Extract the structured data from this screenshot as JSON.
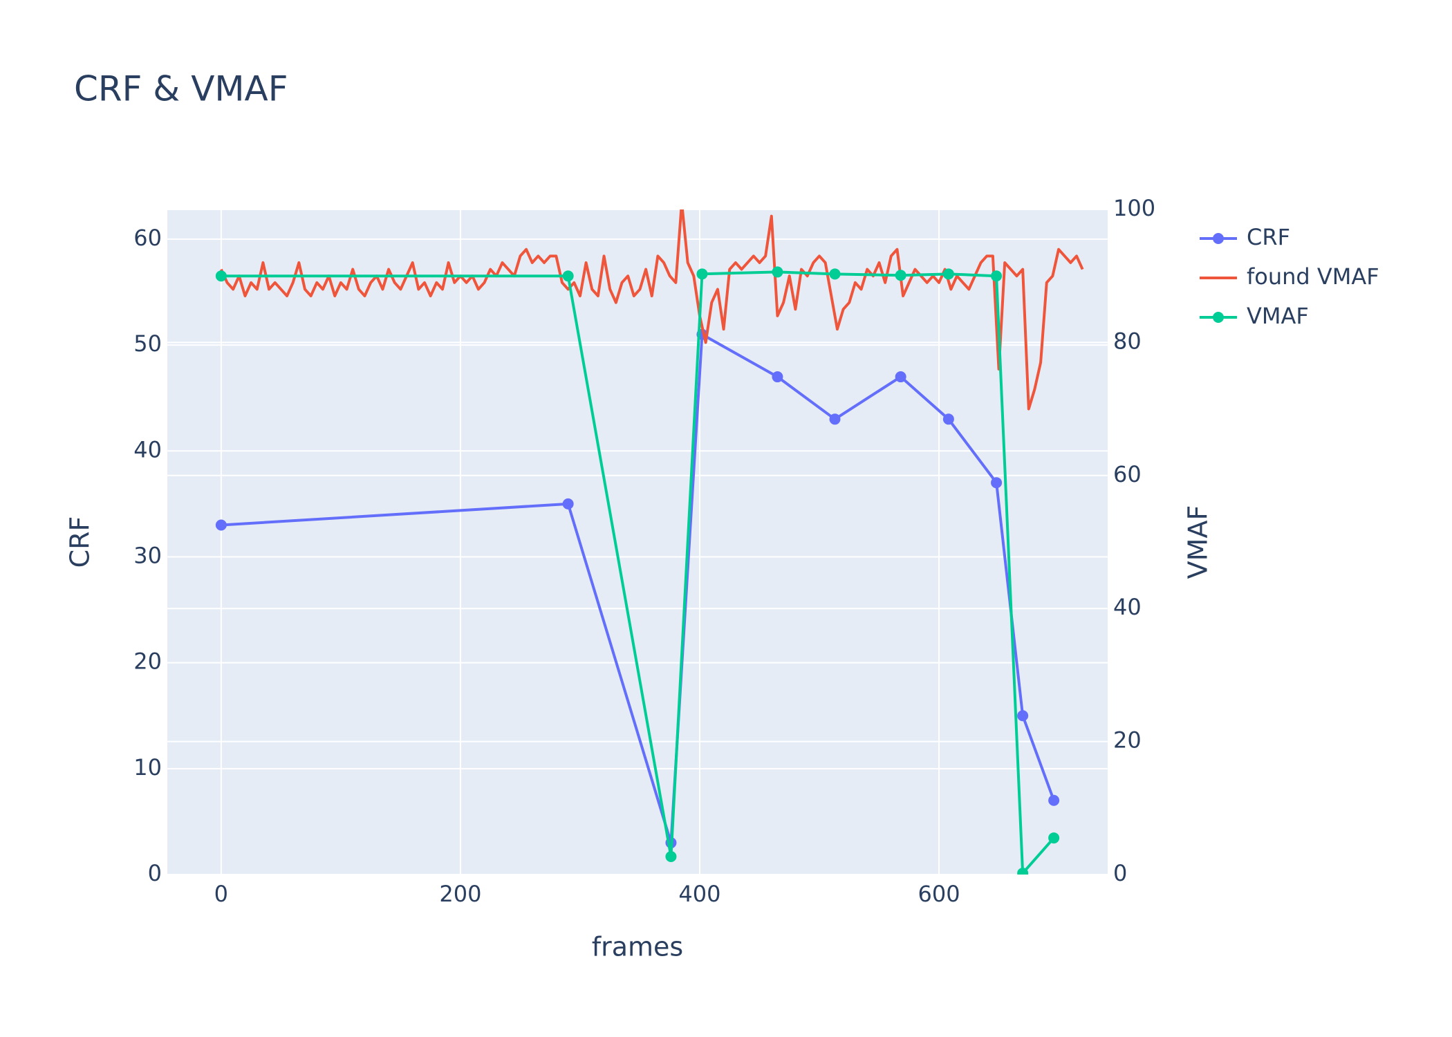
{
  "chart_data": {
    "type": "line",
    "title": "CRF & VMAF",
    "xlabel": "frames",
    "ylabel": "CRF",
    "y2label": "VMAF",
    "x": [
      0,
      290,
      376,
      402,
      465,
      513,
      568,
      608,
      648,
      670,
      696
    ],
    "series": [
      {
        "name": "CRF",
        "color": "#636efa",
        "mode": "lines+markers",
        "values": [
          33,
          35,
          3,
          51,
          47,
          43,
          47,
          43,
          37,
          15,
          7
        ]
      },
      {
        "name": "found VMAF",
        "color": "#EF553B",
        "mode": "lines",
        "axis": "y2",
        "x": [
          0,
          5,
          10,
          15,
          20,
          25,
          30,
          35,
          40,
          45,
          50,
          55,
          60,
          65,
          70,
          75,
          80,
          85,
          90,
          95,
          100,
          105,
          110,
          115,
          120,
          125,
          130,
          135,
          140,
          145,
          150,
          155,
          160,
          165,
          170,
          175,
          180,
          185,
          190,
          195,
          200,
          205,
          210,
          215,
          220,
          225,
          230,
          235,
          240,
          245,
          250,
          255,
          260,
          265,
          270,
          275,
          280,
          285,
          290,
          295,
          300,
          305,
          310,
          315,
          320,
          325,
          330,
          335,
          340,
          345,
          350,
          355,
          360,
          365,
          370,
          375,
          380,
          385,
          390,
          395,
          400,
          405,
          410,
          415,
          420,
          425,
          430,
          435,
          440,
          445,
          450,
          455,
          460,
          465,
          470,
          475,
          480,
          485,
          490,
          495,
          500,
          505,
          510,
          515,
          520,
          525,
          530,
          535,
          540,
          545,
          550,
          555,
          560,
          565,
          570,
          575,
          580,
          585,
          590,
          595,
          600,
          605,
          610,
          615,
          620,
          625,
          630,
          635,
          640,
          645,
          650,
          655,
          660,
          665,
          670,
          675,
          680,
          685,
          690,
          695,
          700,
          705,
          710,
          715,
          720
        ],
        "values": [
          91,
          89,
          88,
          90,
          87,
          89,
          88,
          92,
          88,
          89,
          88,
          87,
          89,
          92,
          88,
          87,
          89,
          88,
          90,
          87,
          89,
          88,
          91,
          88,
          87,
          89,
          90,
          88,
          91,
          89,
          88,
          90,
          92,
          88,
          89,
          87,
          89,
          88,
          92,
          89,
          90,
          89,
          90,
          88,
          89,
          91,
          90,
          92,
          91,
          90,
          93,
          94,
          92,
          93,
          92,
          93,
          93,
          89,
          88,
          89,
          87,
          92,
          88,
          87,
          93,
          88,
          86,
          89,
          90,
          87,
          88,
          91,
          87,
          93,
          92,
          90,
          89,
          101,
          92,
          90,
          84,
          80,
          86,
          88,
          82,
          91,
          92,
          91,
          92,
          93,
          92,
          93,
          99,
          84,
          86,
          90,
          85,
          91,
          90,
          92,
          93,
          92,
          87,
          82,
          85,
          86,
          89,
          88,
          91,
          90,
          92,
          89,
          93,
          94,
          87,
          89,
          91,
          90,
          89,
          90,
          89,
          91,
          88,
          90,
          89,
          88,
          90,
          92,
          93,
          93,
          76,
          92,
          91,
          90,
          91,
          70,
          73,
          77,
          89,
          90,
          94,
          93,
          92,
          93,
          91
        ]
      },
      {
        "name": "VMAF",
        "color": "#00cc96",
        "mode": "lines+markers",
        "axis": "y2",
        "values": [
          90,
          90,
          2.7,
          90.3,
          90.6,
          90.3,
          90.1,
          90.3,
          90,
          0.2,
          5.5
        ]
      }
    ],
    "xlim": [
      -45,
      741
    ],
    "xticks": [
      0,
      200,
      400,
      600
    ],
    "ylim": [
      0,
      62.8
    ],
    "yticks": [
      0,
      10,
      20,
      30,
      40,
      50,
      60
    ],
    "y2lim": [
      0,
      100
    ],
    "y2ticks": [
      0,
      20,
      40,
      60,
      80,
      100
    ],
    "grid": true,
    "legend": "right"
  }
}
